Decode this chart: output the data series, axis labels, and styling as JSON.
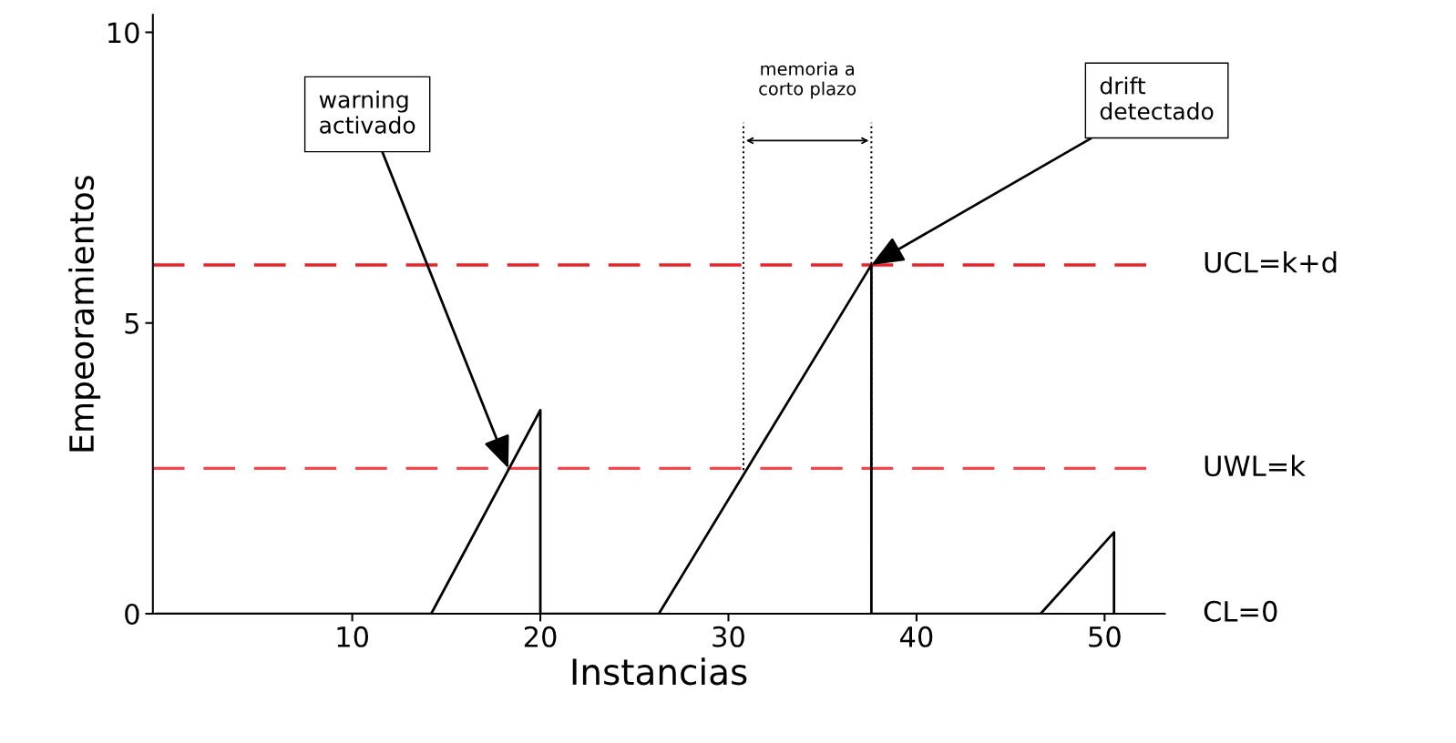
{
  "chart_data": {
    "type": "line",
    "xlabel": "Instancias",
    "ylabel": "Empeoramientos",
    "x": [
      -0.4,
      14.2,
      20,
      20,
      26.3,
      37.6,
      37.6,
      46.6,
      50.5,
      50.5
    ],
    "series": [
      {
        "color": "#000000",
        "values": [
          0,
          0,
          3.5,
          0,
          0,
          6.0,
          0,
          0,
          1.4,
          0
        ]
      }
    ],
    "xlim": [
      -0.6,
      53.2
    ],
    "ylim": [
      0,
      10.3
    ],
    "xticks": [
      10,
      20,
      30,
      40,
      50
    ],
    "yticks": [
      0,
      5,
      10
    ],
    "grid": false,
    "legend": false,
    "line_style": "solid",
    "marker": "none",
    "ref_lines": [
      {
        "axis": "y",
        "value": 6.0,
        "label": "UCL=k+d",
        "color": "#e8232a",
        "line_style": "dashed"
      },
      {
        "axis": "y",
        "value": 2.5,
        "label": "UWL=k",
        "color": "#f0484e",
        "line_style": "dashed"
      },
      {
        "axis": "x",
        "value": 30.8,
        "color": "#000000",
        "line_style": "dotted"
      },
      {
        "axis": "x",
        "value": 37.6,
        "color": "#000000",
        "line_style": "dotted"
      }
    ],
    "annotations": [
      {
        "text": "warning\nactivado",
        "x": 18.3,
        "y": 2.5
      },
      "memoria a\ncorto plazo",
      "CL=0",
      {
        "text": "drift\ndetectado",
        "x": 37.6,
        "y": 6.0
      }
    ]
  }
}
